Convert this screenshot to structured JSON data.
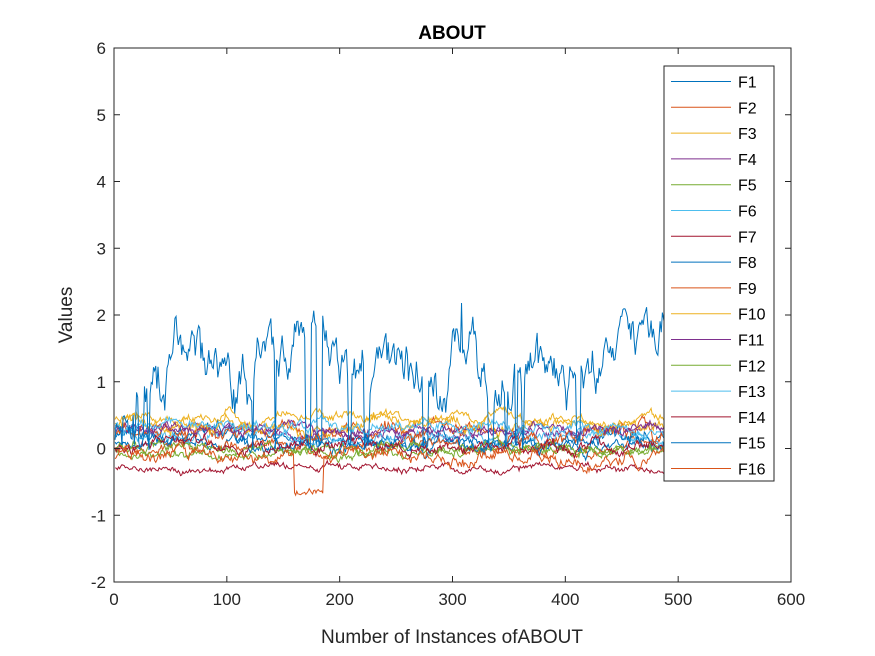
{
  "chart_data": {
    "type": "line",
    "title": "ABOUT",
    "xlabel": "Number of Instances ofABOUT",
    "ylabel": "Values",
    "xlim": [
      0,
      600
    ],
    "ylim": [
      -2,
      6
    ],
    "xticks": [
      "0",
      "100",
      "200",
      "300",
      "400",
      "500",
      "600"
    ],
    "yticks": [
      "-2",
      "-1",
      "0",
      "1",
      "2",
      "3",
      "4",
      "5",
      "6"
    ],
    "grid": false,
    "legend_position": "top-right",
    "n_points": 488,
    "series": [
      {
        "name": "F1",
        "color": "#0072BD",
        "base": 0.1,
        "noise": 0.05
      },
      {
        "name": "F2",
        "color": "#D95319",
        "base": 0.02,
        "noise": 0.06
      },
      {
        "name": "F3",
        "color": "#EDB120",
        "base": 0.45,
        "noise": 0.05
      },
      {
        "name": "F4",
        "color": "#7E2F8E",
        "base": 0.28,
        "noise": 0.05
      },
      {
        "name": "F5",
        "color": "#77AC30",
        "base": -0.05,
        "noise": 0.05
      },
      {
        "name": "F6",
        "color": "#4DBEEE",
        "base": 0.2,
        "noise": 0.06
      },
      {
        "name": "F7",
        "color": "#A2142F",
        "base": -0.3,
        "noise": 0.04
      },
      {
        "name": "F8",
        "color": "#0072BD",
        "base": 0.12,
        "noise": 0.08
      },
      {
        "name": "F9",
        "color": "#D95319",
        "base": 0.25,
        "noise": 0.08
      },
      {
        "name": "F10",
        "color": "#EDB120",
        "base": 0.35,
        "noise": 0.07
      },
      {
        "name": "F11",
        "color": "#7E2F8E",
        "base": 0.3,
        "noise": 0.05
      },
      {
        "name": "F12",
        "color": "#77AC30",
        "base": 0.0,
        "noise": 0.05
      },
      {
        "name": "F13",
        "color": "#4DBEEE",
        "base": 0.35,
        "noise": 0.06
      },
      {
        "name": "F14",
        "color": "#A2142F",
        "base": 0.05,
        "noise": 0.06
      },
      {
        "name": "F15",
        "color": "#0072BD",
        "base": 1.3,
        "noise": 0.15,
        "dips": true
      },
      {
        "name": "F16",
        "color": "#D95319",
        "base": -0.1,
        "noise": 0.07,
        "event": [
          160,
          185,
          -0.65
        ]
      }
    ]
  }
}
